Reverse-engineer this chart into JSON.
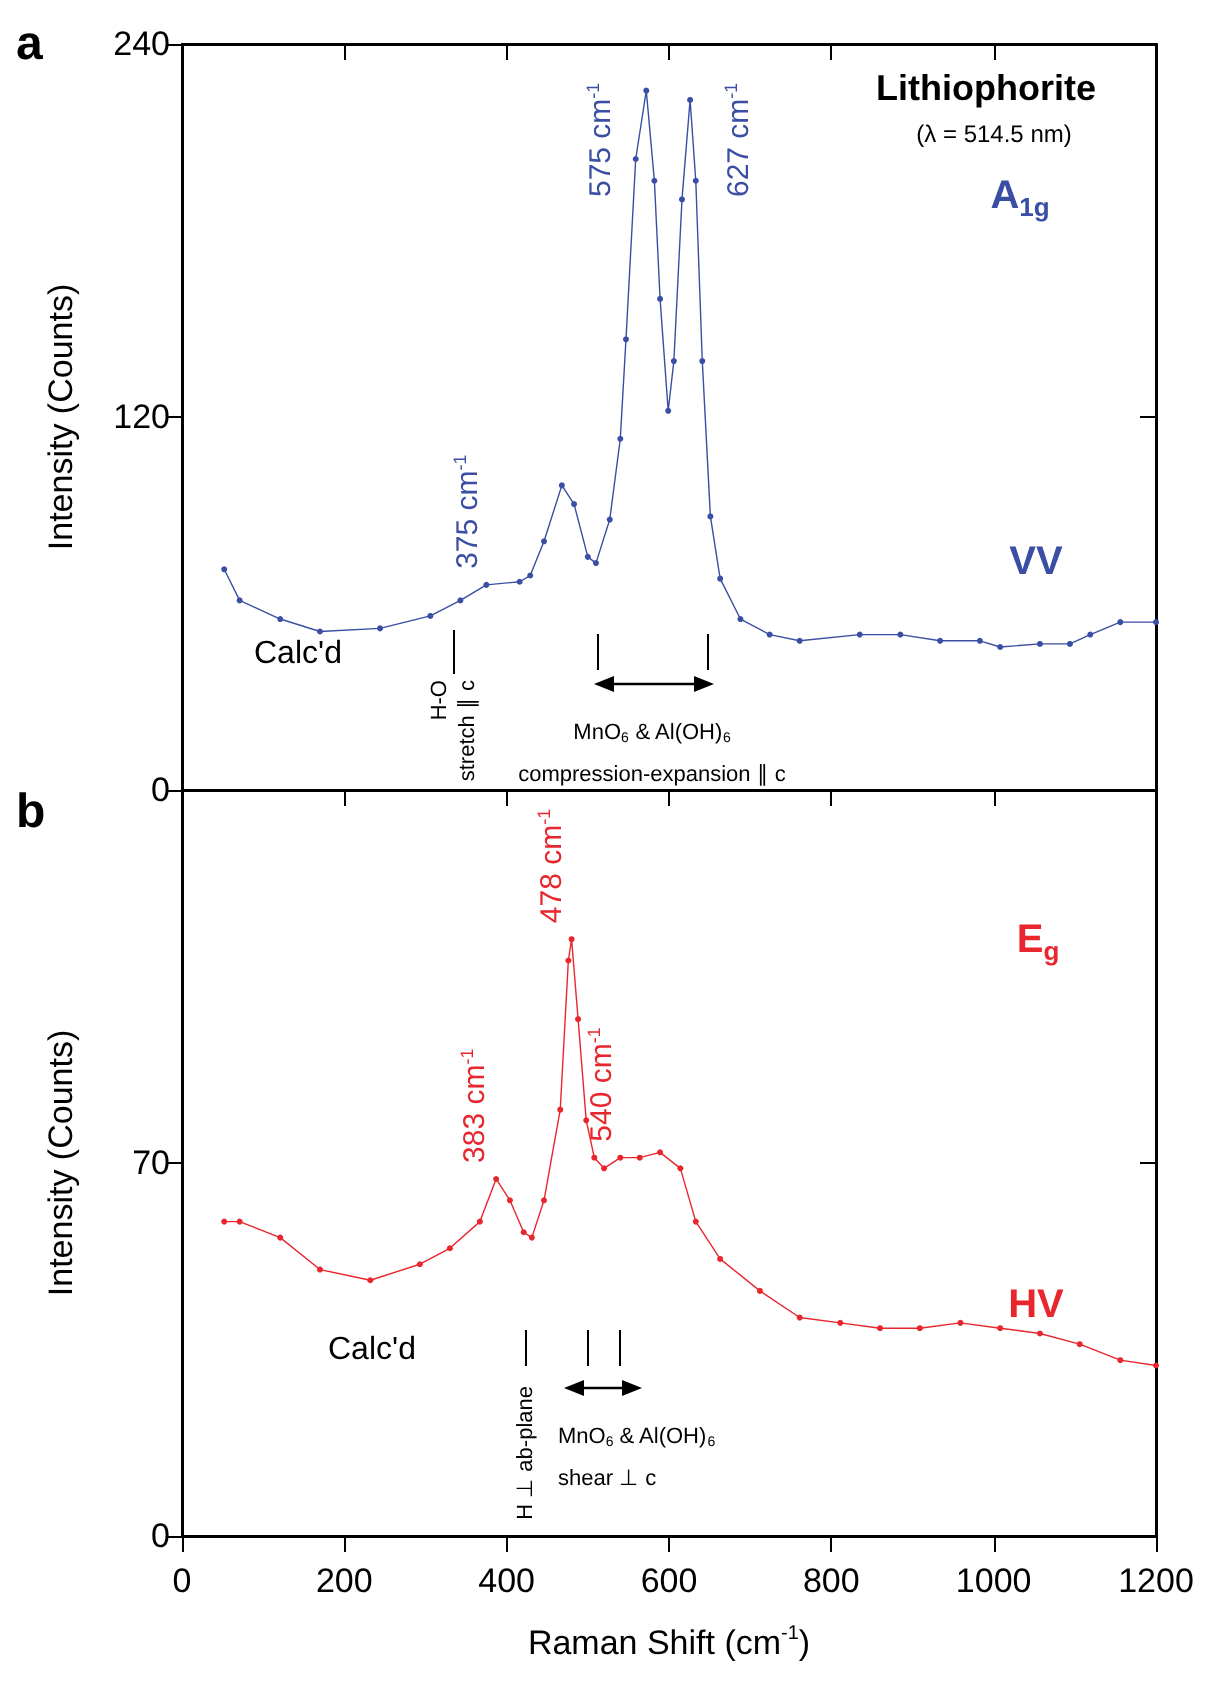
{
  "chart_data": [
    {
      "type": "line",
      "title": "Lithiophorite",
      "subtitle": "(λ = 514.5 nm)",
      "ylabel": "Intensity (Counts)",
      "xlim": [
        0,
        1200
      ],
      "xticks": [
        0,
        200,
        400,
        600,
        800,
        1000,
        1200
      ],
      "ylim": [
        0,
        240
      ],
      "yticks": [
        0,
        120,
        240
      ],
      "tick_labels": "y",
      "marker": "circle",
      "line_style": "solid",
      "series": [
        {
          "name": "VV",
          "color": "#3a4ea3",
          "x": [
            52,
            71,
            121,
            170,
            244,
            306,
            343,
            375,
            416,
            429,
            446,
            468,
            483,
            500,
            510,
            527,
            540,
            547,
            559,
            572,
            582,
            589,
            599,
            606,
            616,
            626,
            633,
            641,
            651,
            663,
            688,
            724,
            761,
            835,
            885,
            934,
            983,
            1008,
            1057,
            1094,
            1119,
            1156,
            1200
          ],
          "values": [
            71,
            61,
            55,
            51,
            52,
            56,
            61,
            66,
            67,
            69,
            80,
            98,
            92,
            75,
            73,
            87,
            113,
            145,
            203,
            225,
            196,
            158,
            122,
            138,
            190,
            222,
            196,
            138,
            88,
            68,
            55,
            50,
            48,
            50,
            50,
            48,
            48,
            46,
            47,
            47,
            50,
            54,
            54
          ]
        }
      ],
      "annotations": [
        "a",
        "A$_{1g}$",
        "Calc'd",
        "H-O\nstretch ∥ c",
        "MnO$_{6}$ & Al(OH)$_{6}$\ncompression-expansion ∥ c",
        {
          "text": "375 cm$^{-1}$",
          "x": 375,
          "y": 66
        },
        {
          "text": "575 cm$^{-1}$",
          "x": 575,
          "y": 225
        },
        {
          "text": "627 cm$^{-1}$",
          "x": 627,
          "y": 222
        }
      ]
    },
    {
      "type": "line",
      "xlabel": "Raman Shift (cm$^{-1}$)",
      "ylabel": "Intensity (Counts)",
      "xlim": [
        0,
        1200
      ],
      "xticks": [
        0,
        200,
        400,
        600,
        800,
        1000,
        1200
      ],
      "ylim": [
        0,
        140
      ],
      "yticks": [
        0,
        70
      ],
      "marker": "circle",
      "line_style": "solid",
      "series": [
        {
          "name": "HV",
          "color": "#e8262d",
          "x": [
            52,
            71,
            121,
            170,
            232,
            293,
            330,
            367,
            387,
            404,
            421,
            431,
            446,
            466,
            476,
            480,
            488,
            498,
            508,
            520,
            540,
            564,
            589,
            614,
            633,
            663,
            712,
            761,
            811,
            860,
            909,
            959,
            1008,
            1057,
            1106,
            1156,
            1200
          ],
          "values": [
            59,
            59,
            56,
            50,
            48,
            51,
            54,
            59,
            67,
            63,
            57,
            56,
            63,
            80,
            108,
            112,
            97,
            78,
            71,
            69,
            71,
            71,
            72,
            69,
            59,
            52,
            46,
            41,
            40,
            39,
            39,
            40,
            39,
            38,
            36,
            33,
            32
          ]
        }
      ],
      "annotations": [
        "b",
        "E$_{g}$",
        "Calc'd",
        "H ⊥ ab-plane",
        "MnO$_{6}$ & Al(OH)$_{6}$\nshear ⊥ c",
        {
          "text": "383 cm$^{-1}$",
          "x": 383,
          "y": 67
        },
        {
          "text": "478 cm$^{-1}$",
          "x": 478,
          "y": 112
        },
        {
          "text": "540 cm$^{-1}$",
          "x": 540,
          "y": 71
        }
      ]
    }
  ]
}
